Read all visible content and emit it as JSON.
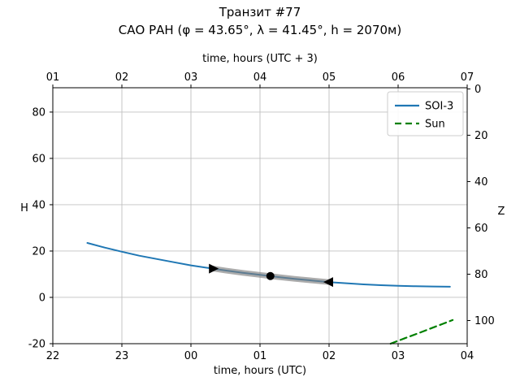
{
  "chart_data": {
    "type": "line",
    "title": "Транзит #77",
    "subtitle": "САО РАН (φ = 43.65°, λ = 41.45°, h = 2070м)",
    "background": "#ffffff",
    "axes": {
      "xlabel_bottom": "time, hours (UTC)",
      "xlabel_top": "time, hours (UTC + 3)",
      "ylabel_left": "H",
      "ylabel_right": "Z",
      "xlim": [
        22,
        28
      ],
      "ylim": [
        -20,
        90.5
      ],
      "x_ticks": [
        22,
        23,
        24,
        25,
        26,
        27,
        28
      ],
      "x_tick_labels_bottom": [
        "22",
        "23",
        "00",
        "01",
        "02",
        "03",
        "04"
      ],
      "x_tick_labels_top": [
        "01",
        "02",
        "03",
        "04",
        "05",
        "06",
        "07"
      ],
      "y_ticks_left": [
        -20,
        0,
        20,
        40,
        60,
        80
      ],
      "y_ticks_right": [
        0,
        20,
        40,
        60,
        80,
        100
      ],
      "zenith_offset": 90,
      "grid": true,
      "grid_color": "#c0c0c0",
      "frame_color": "#000000"
    },
    "series": [
      {
        "name": "SOI-3",
        "color": "#1f77b4",
        "style": "solid",
        "width": 2,
        "opacity": 1,
        "points": [
          [
            22.5,
            23.5
          ],
          [
            22.75,
            21.5
          ],
          [
            23.0,
            19.7
          ],
          [
            23.25,
            18.0
          ],
          [
            23.5,
            16.6
          ],
          [
            23.75,
            15.2
          ],
          [
            24.0,
            13.8
          ],
          [
            24.25,
            12.7
          ],
          [
            24.5,
            11.6
          ],
          [
            24.75,
            10.6
          ],
          [
            25.0,
            9.7
          ],
          [
            25.25,
            8.8
          ],
          [
            25.5,
            8.0
          ],
          [
            25.75,
            7.3
          ],
          [
            26.0,
            6.6
          ],
          [
            26.25,
            6.1
          ],
          [
            26.5,
            5.6
          ],
          [
            26.75,
            5.25
          ],
          [
            27.0,
            5.0
          ],
          [
            27.25,
            4.8
          ],
          [
            27.5,
            4.7
          ],
          [
            27.75,
            4.6
          ]
        ]
      },
      {
        "name": "transit-highlight",
        "color": "#808080",
        "style": "solid",
        "width": 7,
        "opacity": 0.65,
        "points": [
          [
            24.32,
            12.4
          ],
          [
            24.5,
            11.6
          ],
          [
            24.75,
            10.6
          ],
          [
            25.0,
            9.7
          ],
          [
            25.25,
            8.8
          ],
          [
            25.5,
            8.0
          ],
          [
            25.75,
            7.3
          ],
          [
            26.0,
            6.6
          ]
        ]
      },
      {
        "name": "Sun",
        "color": "#008000",
        "style": "dashed",
        "width": 2.2,
        "opacity": 1,
        "points": [
          [
            26.89,
            -20
          ],
          [
            27.1,
            -17.6
          ],
          [
            27.3,
            -15.4
          ],
          [
            27.5,
            -13.1
          ],
          [
            27.65,
            -11.4
          ],
          [
            27.79,
            -9.8
          ]
        ]
      }
    ],
    "markers": [
      {
        "name": "rise-marker",
        "shape": "triangle-right",
        "x": 24.32,
        "y": 12.4,
        "color": "#000000"
      },
      {
        "name": "culmination-marker",
        "shape": "circle",
        "x": 25.15,
        "y": 9.2,
        "color": "#000000"
      },
      {
        "name": "set-marker",
        "shape": "triangle-left",
        "x": 26.0,
        "y": 6.6,
        "color": "#000000"
      }
    ],
    "legend": {
      "position": "upper right",
      "entries": [
        {
          "label": "SOI-3",
          "color": "#1f77b4",
          "style": "solid"
        },
        {
          "label": "Sun",
          "color": "#008000",
          "style": "dashed"
        }
      ]
    }
  }
}
